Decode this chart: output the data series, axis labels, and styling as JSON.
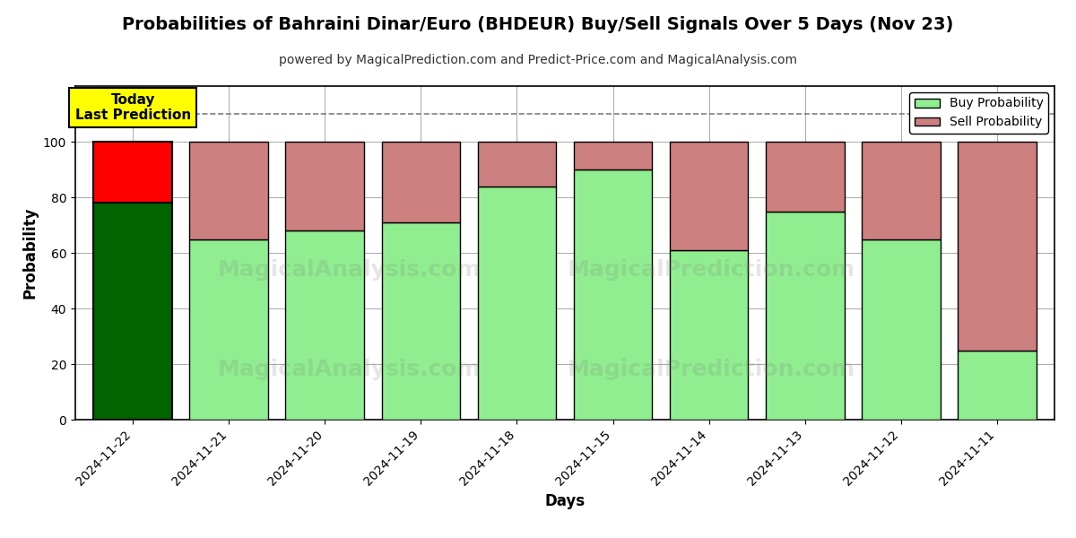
{
  "title": "Probabilities of Bahraini Dinar/Euro (BHDEUR) Buy/Sell Signals Over 5 Days (Nov 23)",
  "subtitle": "powered by MagicalPrediction.com and Predict-Price.com and MagicalAnalysis.com",
  "xlabel": "Days",
  "ylabel": "Probability",
  "dates": [
    "2024-11-22",
    "2024-11-21",
    "2024-11-20",
    "2024-11-19",
    "2024-11-18",
    "2024-11-15",
    "2024-11-14",
    "2024-11-13",
    "2024-11-12",
    "2024-11-11"
  ],
  "buy_values": [
    78,
    65,
    68,
    71,
    84,
    90,
    61,
    75,
    65,
    25
  ],
  "sell_values": [
    22,
    35,
    32,
    29,
    16,
    10,
    39,
    25,
    35,
    75
  ],
  "today_bar_buy_color": "#006400",
  "today_bar_sell_color": "#FF0000",
  "other_bar_buy_color": "#90EE90",
  "other_bar_sell_color": "#CD8080",
  "bar_edge_color": "#000000",
  "today_annotation_text": "Today\nLast Prediction",
  "today_annotation_bg": "#FFFF00",
  "legend_buy_color": "#90EE90",
  "legend_sell_color": "#CD8080",
  "dashed_line_y": 110,
  "ylim": [
    0,
    120
  ],
  "yticks": [
    0,
    20,
    40,
    60,
    80,
    100
  ],
  "background_color": "#ffffff",
  "grid_color": "#aaaaaa",
  "bar_width": 0.82
}
